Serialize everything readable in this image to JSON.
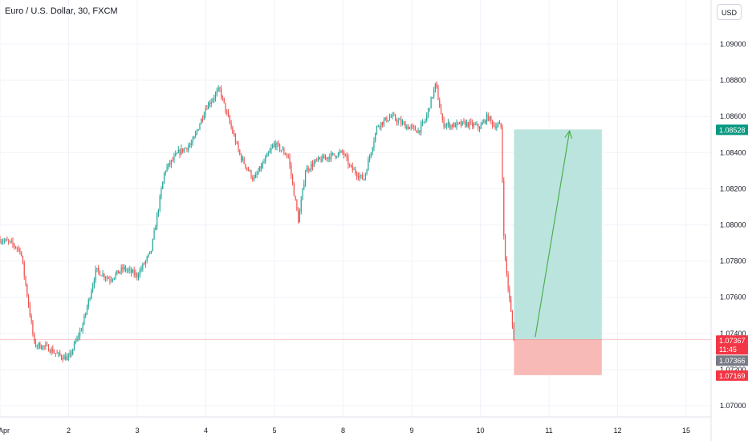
{
  "header": {
    "title": "Euro / U.S. Dollar, 30, FXCM"
  },
  "toolbar": {
    "currency": "USD"
  },
  "colors": {
    "up": "#26a69a",
    "down": "#ef5350",
    "target_zone": "#b7e3dc",
    "stop_zone": "#f8b6b3",
    "current_price": "#f23645",
    "target_badge": "#089981",
    "grey_badge": "#787b86"
  },
  "badges": {
    "target": "1.08528",
    "current": "1.07367",
    "countdown": "11:45",
    "entry": "1.07366",
    "stop": "1.07169"
  },
  "chart_data": {
    "type": "candlestick",
    "title": "Euro / U.S. Dollar, 30, FXCM",
    "y_ticks": [
      "1.09000",
      "1.08800",
      "1.08600",
      "1.08400",
      "1.08200",
      "1.08000",
      "1.07800",
      "1.07600",
      "1.07400",
      "1.07200",
      "1.07000"
    ],
    "y_range": [
      1.0695,
      1.0915
    ],
    "x_ticks": [
      "Apr",
      "2",
      "3",
      "4",
      "5",
      "8",
      "9",
      "10",
      "11",
      "12",
      "15"
    ],
    "close_path": [
      [
        0,
        1.0792
      ],
      [
        0.15,
        1.079
      ],
      [
        0.3,
        1.0786
      ],
      [
        0.42,
        1.0755
      ],
      [
        0.5,
        1.0734
      ],
      [
        0.7,
        1.0732
      ],
      [
        0.85,
        1.0728
      ],
      [
        1.0,
        1.0726
      ],
      [
        1.2,
        1.0744
      ],
      [
        1.4,
        1.0775
      ],
      [
        1.6,
        1.077
      ],
      [
        1.8,
        1.0776
      ],
      [
        2.0,
        1.0772
      ],
      [
        2.2,
        1.0785
      ],
      [
        2.4,
        1.083
      ],
      [
        2.6,
        1.084
      ],
      [
        2.8,
        1.0845
      ],
      [
        3.0,
        1.0865
      ],
      [
        3.2,
        1.0875
      ],
      [
        3.3,
        1.0862
      ],
      [
        3.5,
        1.0838
      ],
      [
        3.7,
        1.0825
      ],
      [
        3.85,
        1.0835
      ],
      [
        4.0,
        1.0845
      ],
      [
        4.2,
        1.0838
      ],
      [
        4.35,
        1.0802
      ],
      [
        4.45,
        1.083
      ],
      [
        4.6,
        1.0835
      ],
      [
        4.8,
        1.0838
      ],
      [
        5.0,
        1.084
      ],
      [
        5.1,
        1.0832
      ],
      [
        5.3,
        1.0825
      ],
      [
        5.5,
        1.0855
      ],
      [
        5.7,
        1.086
      ],
      [
        5.9,
        1.0855
      ],
      [
        6.1,
        1.0852
      ],
      [
        6.2,
        1.0858
      ],
      [
        6.35,
        1.0878
      ],
      [
        6.45,
        1.0856
      ],
      [
        6.6,
        1.0855
      ],
      [
        6.8,
        1.0856
      ],
      [
        7.0,
        1.0854
      ],
      [
        7.1,
        1.086
      ],
      [
        7.2,
        1.0855
      ],
      [
        7.3,
        1.0855
      ],
      [
        7.35,
        1.0785
      ],
      [
        7.42,
        1.076
      ],
      [
        7.49,
        1.0737
      ]
    ],
    "current_price": 1.07367,
    "position": {
      "type": "long",
      "entry": 1.07366,
      "target": 1.08528,
      "stop": 1.07169,
      "start_x": 7.49,
      "end_x": 8.77,
      "arrow_from": [
        7.8,
        1.0738
      ],
      "arrow_to": [
        8.3,
        1.0852
      ]
    }
  }
}
